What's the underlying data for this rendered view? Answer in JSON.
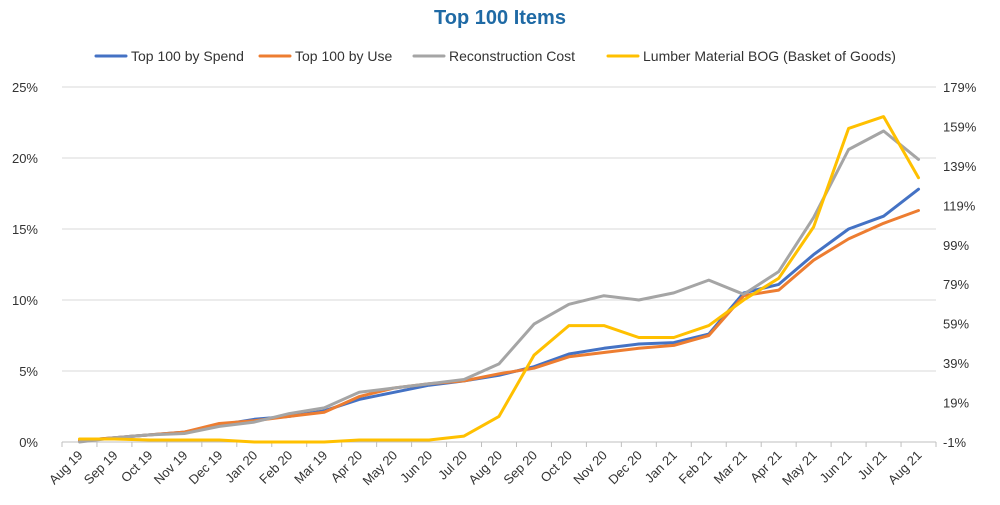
{
  "chart_data": {
    "type": "line",
    "title": "Top 100 Items",
    "categories": [
      "Aug 19",
      "Sep 19",
      "Oct 19",
      "Nov 19",
      "Dec 19",
      "Jan 20",
      "Feb 20",
      "Mar 19",
      "Apr 20",
      "May 20",
      "Jun 20",
      "Jul 20",
      "Aug 20",
      "Sep 20",
      "Oct 20",
      "Nov 20",
      "Dec 20",
      "Jan 21",
      "Feb 21",
      "Mar 21",
      "Apr 21",
      "May 21",
      "Jun 21",
      "Jul 21",
      "Aug 21"
    ],
    "y_left": {
      "min": 0,
      "max": 25,
      "ticks": [
        0,
        5,
        10,
        15,
        20,
        25
      ],
      "tick_labels": [
        "0%",
        "5%",
        "10%",
        "15%",
        "20%",
        "25%"
      ]
    },
    "y_right": {
      "min": -1,
      "max": 179,
      "ticks": [
        -1,
        19,
        39,
        59,
        79,
        99,
        119,
        139,
        159,
        179
      ],
      "tick_labels": [
        "-1%",
        "19%",
        "39%",
        "59%",
        "79%",
        "99%",
        "119%",
        "139%",
        "159%",
        "179%"
      ]
    },
    "grid": true,
    "legend_position": "top",
    "series": [
      {
        "name": "Top 100 by Spend",
        "color": "#4472c4",
        "axis": "left",
        "values": [
          0.1,
          0.3,
          0.5,
          0.7,
          1.2,
          1.6,
          1.8,
          2.2,
          3.0,
          3.5,
          4.0,
          4.3,
          4.7,
          5.3,
          6.2,
          6.6,
          6.9,
          7.0,
          7.6,
          10.5,
          11.1,
          13.2,
          15.0,
          15.9,
          17.8
        ]
      },
      {
        "name": "Top 100 by Use",
        "color": "#ed7d31",
        "axis": "left",
        "values": [
          0.1,
          0.3,
          0.5,
          0.7,
          1.3,
          1.5,
          1.8,
          2.1,
          3.2,
          3.8,
          4.1,
          4.3,
          4.8,
          5.2,
          6.0,
          6.3,
          6.6,
          6.8,
          7.5,
          10.3,
          10.7,
          12.8,
          14.3,
          15.4,
          16.3
        ]
      },
      {
        "name": "Reconstruction Cost",
        "color": "#a5a5a5",
        "axis": "left",
        "values": [
          0.0,
          0.3,
          0.5,
          0.6,
          1.1,
          1.4,
          2.0,
          2.4,
          3.5,
          3.8,
          4.1,
          4.4,
          5.5,
          8.3,
          9.7,
          10.3,
          10.0,
          10.5,
          11.4,
          10.4,
          12.0,
          15.8,
          20.6,
          21.9,
          19.9
        ]
      },
      {
        "name": "Lumber Material BOG (Basket of Goods)",
        "color": "#ffc000",
        "axis": "right",
        "values": [
          0.5,
          0.5,
          0.0,
          0.0,
          0.0,
          -1.0,
          -1.0,
          -1.0,
          0.0,
          0.0,
          0.0,
          2.0,
          12.0,
          43.0,
          58.0,
          58.0,
          52.0,
          52.0,
          58.0,
          71.0,
          82.0,
          108.0,
          158.0,
          164.0,
          133.0
        ]
      }
    ]
  }
}
